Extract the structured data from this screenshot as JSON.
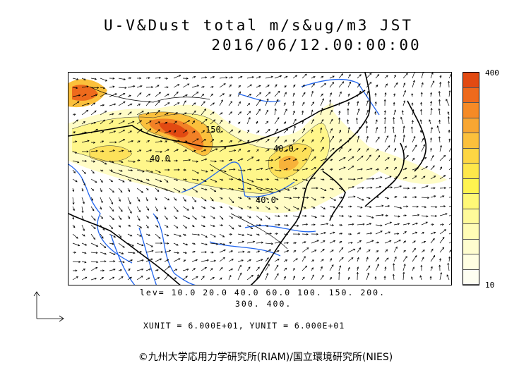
{
  "title_line1": "U-V&Dust total m/s&ug/m3 JST",
  "title_line2": "2016/06/12.00:00:00",
  "colorbar": {
    "max_label": "400",
    "min_label": "10",
    "colors": [
      "#e24a12",
      "#ee6a1c",
      "#f58a26",
      "#f8a632",
      "#fbc03c",
      "#fdd643",
      "#fee74a",
      "#fff34f",
      "#fff877",
      "#fffa9a",
      "#fffcb6",
      "#fffdcf",
      "#fffee2",
      "#fffff2"
    ]
  },
  "contour_labels": [
    "150",
    "40.0",
    "40.0",
    "40.0"
  ],
  "levels_line1": "lev= 10.0 20.0 40.0 60.0 100. 150. 200.",
  "levels_line2": "300. 400.",
  "units_line": "XUNIT = 6.000E+01, YUNIT = 6.000E+01",
  "copyright": "©九州大学応用力学研究所(RIAM)/国立環境研究所(NIES)"
}
